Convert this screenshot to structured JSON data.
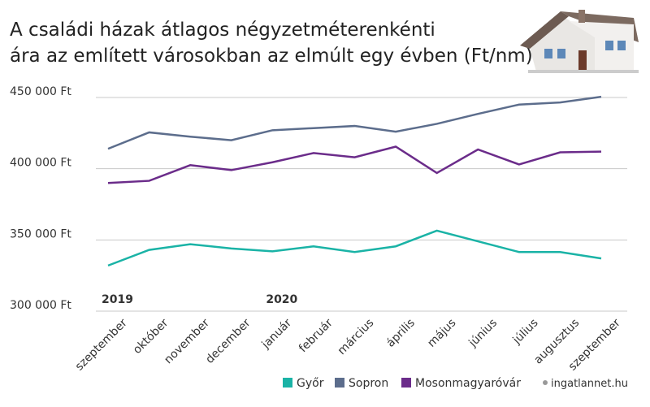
{
  "chart_data": {
    "type": "line",
    "title": "A családi házak átlagos négyzetméterenkénti ára az említett városokban az elmúlt egy évben (Ft/nm)",
    "categories": [
      "szeptember",
      "október",
      "november",
      "december",
      "január",
      "február",
      "március",
      "április",
      "május",
      "június",
      "július",
      "augusztus",
      "szeptember"
    ],
    "annotations": [
      "2019",
      "2020"
    ],
    "series": [
      {
        "name": "Győr",
        "color": "#1ab3a6",
        "values": [
          332000,
          343000,
          347000,
          344000,
          342000,
          345500,
          341500,
          345500,
          356500,
          349000,
          341500,
          341500,
          337000
        ]
      },
      {
        "name": "Sopron",
        "color": "#5c6d8c",
        "values": [
          414000,
          425500,
          422500,
          420000,
          427000,
          428500,
          430000,
          426000,
          431500,
          438500,
          445000,
          446500,
          450500
        ]
      },
      {
        "name": "Mosonmagyaróvár",
        "color": "#6b2c8a",
        "values": [
          390000,
          391500,
          402500,
          399000,
          404500,
          411000,
          408000,
          415500,
          397000,
          413500,
          403000,
          411500,
          412000
        ]
      }
    ],
    "ylim": [
      300000,
      450000
    ],
    "yticks": [
      {
        "value": 300000,
        "label": "300 000 Ft"
      },
      {
        "value": 350000,
        "label": "350 000 Ft"
      },
      {
        "value": 400000,
        "label": "400 000 Ft"
      },
      {
        "value": 450000,
        "label": "450 000 Ft"
      }
    ],
    "grid": true,
    "source": "ingatlannet.hu"
  }
}
